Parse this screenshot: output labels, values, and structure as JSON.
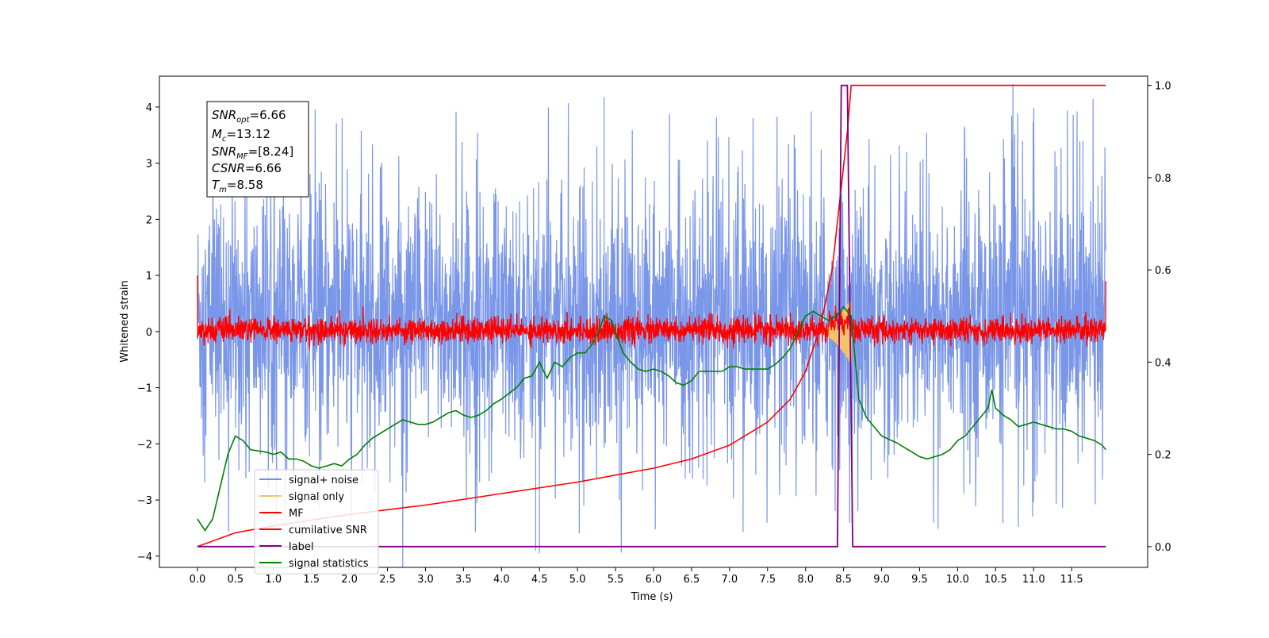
{
  "chart_data": {
    "type": "line",
    "xlabel": "Time (s)",
    "ylabel": "Whitened strain",
    "xlim": [
      -0.5,
      12.5
    ],
    "ylim": [
      -4.2,
      4.55
    ],
    "y2lim": [
      -0.045,
      1.02
    ],
    "x_ticks": [
      "0.0",
      "0.5",
      "1.0",
      "1.5",
      "2.0",
      "2.5",
      "3.0",
      "3.5",
      "4.0",
      "4.5",
      "5.0",
      "5.5",
      "6.0",
      "6.5",
      "7.0",
      "7.5",
      "8.0",
      "8.5",
      "9.0",
      "9.5",
      "10.0",
      "10.5",
      "11.0",
      "11.5"
    ],
    "y_ticks": [
      "4",
      "3",
      "2",
      "1",
      "0",
      "−1",
      "−2",
      "−3",
      "−4"
    ],
    "y2_ticks": [
      "1.0",
      "0.8",
      "0.6",
      "0.4",
      "0.2",
      "0.0"
    ],
    "legend_position": "lower-left",
    "legend": [
      "signal+ noise",
      "signal only",
      "MF",
      "cumilative SNR",
      "label",
      "signal statistics"
    ],
    "info_box": {
      "snr_opt": "=6.66",
      "mc": "=13.12",
      "snr_mf": "=[8.24]",
      "csnr": "=6.66",
      "tm": "=8.58"
    },
    "series": [
      {
        "name": "signal+ noise",
        "axis": "left",
        "color": "#6c8be6",
        "x_range": [
          0.0,
          11.95
        ],
        "approx_band": [
          -1.8,
          2.2
        ],
        "spikes": [
          [
            5.35,
            4.18
          ],
          [
            4.45,
            -3.9
          ],
          [
            4.5,
            -3.95
          ],
          [
            11.65,
            3.4
          ],
          [
            5.55,
            -3.0
          ]
        ]
      },
      {
        "name": "signal only",
        "axis": "left",
        "color": "#f5c26b",
        "x_range": [
          8.1,
          8.6
        ],
        "peak_amp": 0.6
      },
      {
        "name": "MF",
        "axis": "left",
        "color": "#ff0000",
        "x_range": [
          0.0,
          11.95
        ],
        "approx_band": [
          -0.2,
          0.25
        ],
        "start_value": 1.0,
        "end_value": 0.9
      },
      {
        "name": "cumilative SNR",
        "axis": "right",
        "color": "#ff0000",
        "points": [
          [
            0.0,
            0.0
          ],
          [
            0.5,
            0.03
          ],
          [
            1.0,
            0.045
          ],
          [
            2.0,
            0.07
          ],
          [
            3.0,
            0.09
          ],
          [
            4.0,
            0.115
          ],
          [
            5.0,
            0.14
          ],
          [
            6.0,
            0.17
          ],
          [
            6.5,
            0.19
          ],
          [
            7.0,
            0.22
          ],
          [
            7.5,
            0.27
          ],
          [
            7.8,
            0.32
          ],
          [
            8.0,
            0.38
          ],
          [
            8.2,
            0.48
          ],
          [
            8.35,
            0.6
          ],
          [
            8.45,
            0.75
          ],
          [
            8.55,
            0.9
          ],
          [
            8.6,
            1.0
          ],
          [
            11.95,
            1.0
          ]
        ]
      },
      {
        "name": "label",
        "axis": "right",
        "color": "#800080",
        "points": [
          [
            0.0,
            0.0
          ],
          [
            8.42,
            0.0
          ],
          [
            8.47,
            1.0
          ],
          [
            8.55,
            1.0
          ],
          [
            8.62,
            0.0
          ],
          [
            11.95,
            0.0
          ]
        ]
      },
      {
        "name": "signal statistics",
        "axis": "right",
        "color": "#008000",
        "points": [
          [
            0.0,
            0.06
          ],
          [
            0.1,
            0.035
          ],
          [
            0.2,
            0.06
          ],
          [
            0.3,
            0.13
          ],
          [
            0.4,
            0.2
          ],
          [
            0.5,
            0.24
          ],
          [
            0.6,
            0.23
          ],
          [
            0.7,
            0.21
          ],
          [
            0.9,
            0.205
          ],
          [
            1.0,
            0.2
          ],
          [
            1.1,
            0.205
          ],
          [
            1.2,
            0.19
          ],
          [
            1.3,
            0.19
          ],
          [
            1.4,
            0.185
          ],
          [
            1.5,
            0.175
          ],
          [
            1.6,
            0.17
          ],
          [
            1.7,
            0.175
          ],
          [
            1.8,
            0.18
          ],
          [
            1.9,
            0.175
          ],
          [
            2.0,
            0.19
          ],
          [
            2.1,
            0.2
          ],
          [
            2.2,
            0.22
          ],
          [
            2.3,
            0.235
          ],
          [
            2.4,
            0.245
          ],
          [
            2.5,
            0.255
          ],
          [
            2.6,
            0.265
          ],
          [
            2.7,
            0.275
          ],
          [
            2.8,
            0.27
          ],
          [
            2.9,
            0.265
          ],
          [
            3.0,
            0.265
          ],
          [
            3.1,
            0.27
          ],
          [
            3.2,
            0.28
          ],
          [
            3.3,
            0.29
          ],
          [
            3.4,
            0.295
          ],
          [
            3.5,
            0.285
          ],
          [
            3.6,
            0.28
          ],
          [
            3.7,
            0.285
          ],
          [
            3.8,
            0.295
          ],
          [
            3.9,
            0.31
          ],
          [
            4.0,
            0.32
          ],
          [
            4.2,
            0.345
          ],
          [
            4.3,
            0.365
          ],
          [
            4.4,
            0.37
          ],
          [
            4.5,
            0.4
          ],
          [
            4.6,
            0.365
          ],
          [
            4.7,
            0.4
          ],
          [
            4.8,
            0.39
          ],
          [
            4.9,
            0.41
          ],
          [
            5.0,
            0.42
          ],
          [
            5.1,
            0.42
          ],
          [
            5.2,
            0.44
          ],
          [
            5.3,
            0.475
          ],
          [
            5.35,
            0.5
          ],
          [
            5.45,
            0.49
          ],
          [
            5.5,
            0.465
          ],
          [
            5.6,
            0.42
          ],
          [
            5.7,
            0.4
          ],
          [
            5.8,
            0.385
          ],
          [
            5.9,
            0.38
          ],
          [
            6.0,
            0.385
          ],
          [
            6.1,
            0.38
          ],
          [
            6.2,
            0.37
          ],
          [
            6.3,
            0.355
          ],
          [
            6.4,
            0.35
          ],
          [
            6.5,
            0.36
          ],
          [
            6.55,
            0.37
          ],
          [
            6.6,
            0.38
          ],
          [
            6.7,
            0.38
          ],
          [
            6.8,
            0.38
          ],
          [
            6.9,
            0.38
          ],
          [
            7.0,
            0.39
          ],
          [
            7.1,
            0.39
          ],
          [
            7.2,
            0.385
          ],
          [
            7.3,
            0.385
          ],
          [
            7.4,
            0.385
          ],
          [
            7.5,
            0.385
          ],
          [
            7.6,
            0.395
          ],
          [
            7.7,
            0.41
          ],
          [
            7.8,
            0.43
          ],
          [
            7.9,
            0.465
          ],
          [
            8.0,
            0.5
          ],
          [
            8.1,
            0.51
          ],
          [
            8.2,
            0.5
          ],
          [
            8.3,
            0.49
          ],
          [
            8.4,
            0.5
          ],
          [
            8.5,
            0.52
          ],
          [
            8.6,
            0.5
          ],
          [
            8.7,
            0.32
          ],
          [
            8.8,
            0.28
          ],
          [
            8.9,
            0.26
          ],
          [
            9.0,
            0.24
          ],
          [
            9.2,
            0.225
          ],
          [
            9.4,
            0.205
          ],
          [
            9.5,
            0.195
          ],
          [
            9.6,
            0.19
          ],
          [
            9.7,
            0.195
          ],
          [
            9.8,
            0.2
          ],
          [
            9.9,
            0.21
          ],
          [
            10.0,
            0.23
          ],
          [
            10.1,
            0.24
          ],
          [
            10.2,
            0.26
          ],
          [
            10.3,
            0.28
          ],
          [
            10.4,
            0.3
          ],
          [
            10.45,
            0.34
          ],
          [
            10.5,
            0.3
          ],
          [
            10.6,
            0.285
          ],
          [
            10.7,
            0.275
          ],
          [
            10.8,
            0.26
          ],
          [
            10.9,
            0.265
          ],
          [
            11.0,
            0.27
          ],
          [
            11.1,
            0.265
          ],
          [
            11.2,
            0.26
          ],
          [
            11.3,
            0.255
          ],
          [
            11.4,
            0.255
          ],
          [
            11.5,
            0.25
          ],
          [
            11.6,
            0.24
          ],
          [
            11.7,
            0.235
          ],
          [
            11.8,
            0.23
          ],
          [
            11.9,
            0.22
          ],
          [
            11.95,
            0.21
          ]
        ]
      }
    ]
  }
}
